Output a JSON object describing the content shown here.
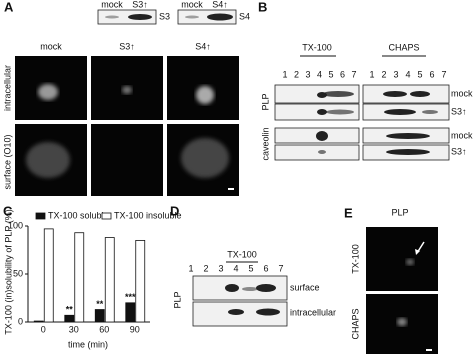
{
  "panel_a": {
    "label": "A",
    "blot_s3": {
      "lanes": [
        "mock",
        "S3↑"
      ],
      "name": "S3"
    },
    "blot_s4": {
      "lanes": [
        "mock",
        "S4↑"
      ],
      "name": "S4"
    },
    "columns": [
      "mock",
      "S3↑",
      "S4↑"
    ],
    "rows": [
      "intracellular",
      "surface (O10)"
    ]
  },
  "panel_b": {
    "label": "B",
    "groups": [
      "TX-100",
      "CHAPS"
    ],
    "lanes": [
      "1",
      "2",
      "3",
      "4",
      "5",
      "6",
      "7"
    ],
    "blots": [
      "PLP",
      "caveolin"
    ],
    "conditions": [
      "mock",
      "S3↑"
    ]
  },
  "chart_data": {
    "type": "bar",
    "label": "C",
    "y_label": "TX-100 (in)solubility of PLP (%)",
    "x_label": "time (min)",
    "categories": [
      "0",
      "30",
      "60",
      "90"
    ],
    "series": [
      {
        "name": "TX-100 soluble",
        "color": "#111111",
        "values": [
          1,
          7,
          13,
          20
        ]
      },
      {
        "name": "TX-100 insoluble",
        "color": "#ffffff",
        "values": [
          97,
          93,
          88,
          85
        ]
      }
    ],
    "significance": [
      null,
      "**",
      "**",
      "***"
    ],
    "ylim": [
      0,
      100
    ],
    "yticks": [
      0,
      50,
      100
    ]
  },
  "panel_d": {
    "label": "D",
    "group": "TX-100",
    "lanes": [
      "1",
      "2",
      "3",
      "4",
      "5",
      "6",
      "7"
    ],
    "blot": "PLP",
    "fractions": [
      "surface",
      "intracellular"
    ]
  },
  "panel_e": {
    "label": "E",
    "title": "PLP",
    "rows": [
      "TX-100",
      "CHAPS"
    ]
  }
}
